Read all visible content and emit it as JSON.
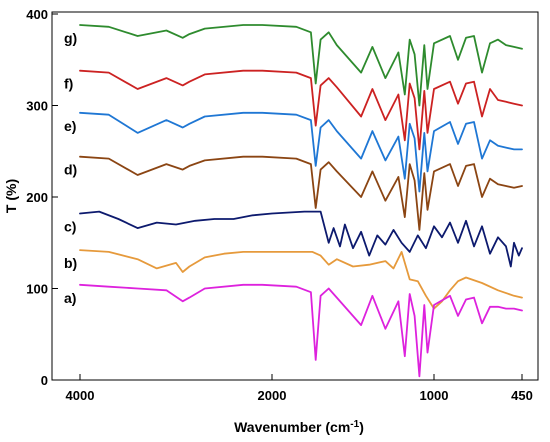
{
  "chart_data": {
    "type": "line",
    "xlabel": "Wavenumber (cm",
    "xlabel_sup": "-1",
    "xlabel_tail": ")",
    "ylabel": "T (%)",
    "xlim": [
      4000,
      450
    ],
    "ylim": [
      0,
      400
    ],
    "x_reversed": true,
    "x_ticks": [
      4000,
      2000,
      1000,
      450
    ],
    "y_ticks": [
      0,
      100,
      200,
      300,
      400
    ],
    "grid": false,
    "series": [
      {
        "name": "g)",
        "color": "#2e8b2e",
        "x": [
          4000,
          3700,
          3400,
          3100,
          2930,
          2860,
          2700,
          2300,
          2100,
          1850,
          1760,
          1730,
          1700,
          1650,
          1600,
          1450,
          1380,
          1300,
          1220,
          1180,
          1150,
          1120,
          1090,
          1060,
          1040,
          1000,
          900,
          850,
          800,
          750,
          700,
          650,
          600,
          550,
          500,
          450
        ],
        "y": [
          388,
          386,
          376,
          382,
          374,
          378,
          384,
          388,
          388,
          386,
          380,
          324,
          372,
          380,
          366,
          336,
          364,
          330,
          358,
          312,
          372,
          356,
          300,
          366,
          318,
          368,
          376,
          350,
          374,
          376,
          336,
          368,
          372,
          366,
          364,
          362
        ]
      },
      {
        "name": "f)",
        "color": "#cc2222",
        "x": [
          4000,
          3700,
          3400,
          3100,
          2930,
          2860,
          2700,
          2300,
          2100,
          1850,
          1760,
          1730,
          1700,
          1650,
          1600,
          1450,
          1380,
          1300,
          1220,
          1180,
          1150,
          1120,
          1090,
          1060,
          1040,
          1000,
          900,
          850,
          800,
          750,
          700,
          650,
          600,
          550,
          500,
          450
        ],
        "y": [
          338,
          336,
          318,
          330,
          322,
          326,
          334,
          338,
          338,
          336,
          330,
          278,
          322,
          330,
          320,
          288,
          318,
          284,
          312,
          262,
          324,
          308,
          252,
          316,
          270,
          318,
          326,
          302,
          324,
          326,
          288,
          318,
          306,
          304,
          302,
          300
        ]
      },
      {
        "name": "e)",
        "color": "#1f77d4",
        "x": [
          4000,
          3700,
          3400,
          3100,
          2930,
          2860,
          2700,
          2300,
          2100,
          1850,
          1760,
          1730,
          1700,
          1650,
          1600,
          1450,
          1380,
          1300,
          1220,
          1180,
          1150,
          1120,
          1090,
          1060,
          1040,
          1000,
          900,
          850,
          800,
          750,
          700,
          650,
          600,
          550,
          500,
          450
        ],
        "y": [
          292,
          290,
          270,
          284,
          276,
          280,
          288,
          292,
          292,
          290,
          284,
          234,
          276,
          284,
          272,
          242,
          272,
          240,
          266,
          220,
          280,
          264,
          206,
          270,
          228,
          272,
          282,
          258,
          280,
          282,
          242,
          262,
          256,
          254,
          252,
          252
        ]
      },
      {
        "name": "d)",
        "color": "#8b4513",
        "x": [
          4000,
          3700,
          3400,
          3100,
          2930,
          2860,
          2700,
          2300,
          2100,
          1850,
          1760,
          1730,
          1700,
          1650,
          1600,
          1450,
          1380,
          1300,
          1220,
          1180,
          1150,
          1120,
          1090,
          1060,
          1040,
          1000,
          900,
          850,
          800,
          750,
          700,
          650,
          600,
          550,
          500,
          450
        ],
        "y": [
          244,
          242,
          224,
          236,
          230,
          234,
          240,
          244,
          244,
          242,
          236,
          188,
          230,
          238,
          228,
          200,
          228,
          196,
          222,
          178,
          236,
          218,
          164,
          226,
          186,
          228,
          236,
          212,
          234,
          236,
          200,
          220,
          214,
          212,
          210,
          212
        ]
      },
      {
        "name": "c)",
        "color": "#0d1a6e",
        "x": [
          4000,
          3800,
          3600,
          3400,
          3200,
          3000,
          2800,
          2600,
          2400,
          2200,
          2000,
          1800,
          1700,
          1650,
          1620,
          1580,
          1550,
          1500,
          1450,
          1400,
          1350,
          1300,
          1250,
          1200,
          1150,
          1100,
          1050,
          1000,
          950,
          900,
          850,
          800,
          750,
          700,
          650,
          600,
          550,
          520,
          500,
          470,
          450
        ],
        "y": [
          182,
          184,
          176,
          166,
          172,
          170,
          174,
          176,
          176,
          180,
          182,
          184,
          184,
          150,
          166,
          146,
          170,
          144,
          162,
          136,
          158,
          148,
          164,
          150,
          140,
          158,
          144,
          168,
          156,
          172,
          150,
          174,
          146,
          168,
          138,
          156,
          146,
          124,
          150,
          136,
          144
        ]
      },
      {
        "name": "b)",
        "color": "#e69a3c",
        "x": [
          4000,
          3700,
          3400,
          3200,
          3000,
          2930,
          2860,
          2700,
          2500,
          2300,
          2100,
          1900,
          1750,
          1700,
          1650,
          1600,
          1500,
          1400,
          1300,
          1250,
          1200,
          1150,
          1100,
          1050,
          1000,
          950,
          900,
          850,
          800,
          700,
          600,
          500,
          450
        ],
        "y": [
          142,
          140,
          132,
          122,
          128,
          118,
          124,
          134,
          138,
          140,
          140,
          140,
          140,
          136,
          126,
          132,
          124,
          126,
          130,
          122,
          140,
          110,
          108,
          92,
          78,
          86,
          98,
          108,
          112,
          106,
          98,
          92,
          90
        ]
      },
      {
        "name": "a)",
        "color": "#dd22dd",
        "x": [
          4000,
          3700,
          3400,
          3100,
          2930,
          2860,
          2700,
          2300,
          2100,
          1850,
          1760,
          1730,
          1700,
          1650,
          1600,
          1450,
          1380,
          1300,
          1220,
          1180,
          1150,
          1120,
          1090,
          1060,
          1040,
          1000,
          900,
          850,
          800,
          750,
          700,
          650,
          600,
          550,
          500,
          450
        ],
        "y": [
          104,
          102,
          100,
          98,
          86,
          90,
          100,
          104,
          104,
          102,
          96,
          22,
          92,
          100,
          90,
          60,
          92,
          56,
          86,
          26,
          94,
          70,
          4,
          82,
          30,
          82,
          92,
          70,
          88,
          90,
          62,
          80,
          80,
          78,
          78,
          76
        ]
      }
    ]
  }
}
